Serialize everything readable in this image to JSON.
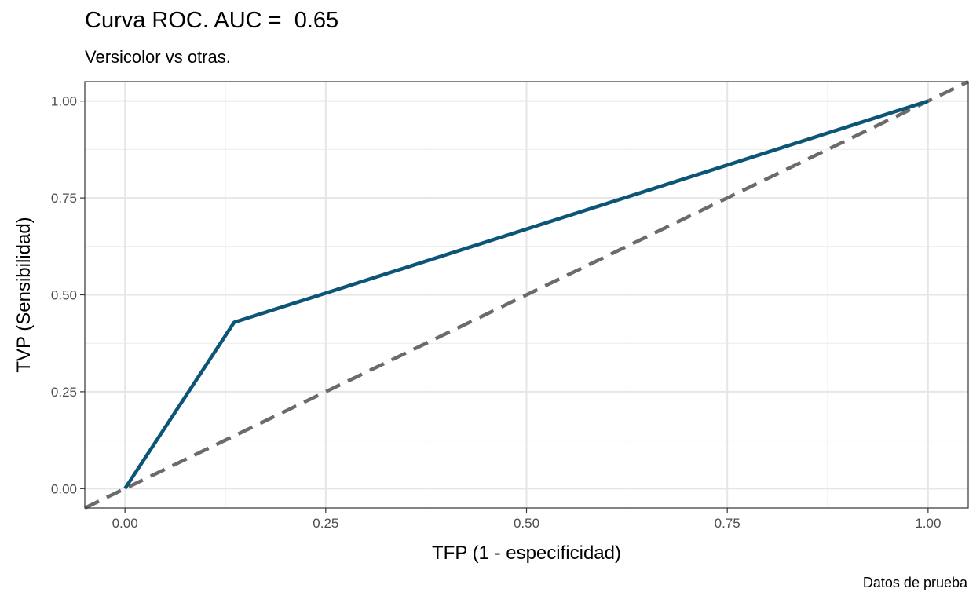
{
  "chart_data": {
    "type": "line",
    "title": "Curva ROC. AUC =  0.65",
    "subtitle": "Versicolor vs otras.",
    "caption": "Datos de prueba",
    "xlabel": "TFP (1 - especificidad)",
    "ylabel": "TVP (Sensibilidad)",
    "xlim": [
      -0.05,
      1.05
    ],
    "ylim": [
      -0.05,
      1.05
    ],
    "x_ticks": [
      0,
      0.25,
      0.5,
      0.75,
      1
    ],
    "x_tick_labels": [
      "0.00",
      "0.25",
      "0.50",
      "0.75",
      "1.00"
    ],
    "y_ticks": [
      0,
      0.25,
      0.5,
      0.75,
      1
    ],
    "y_tick_labels": [
      "0.00",
      "0.25",
      "0.50",
      "0.75",
      "1.00"
    ],
    "grid": true,
    "series": [
      {
        "x": [
          0,
          0.136,
          1
        ],
        "y": [
          0,
          0.429,
          1
        ],
        "color": "#0b5577",
        "style": "solid"
      }
    ],
    "reference_line": {
      "slope": 1,
      "intercept": 0,
      "color": "#6b6b6b",
      "style": "dashed"
    }
  }
}
